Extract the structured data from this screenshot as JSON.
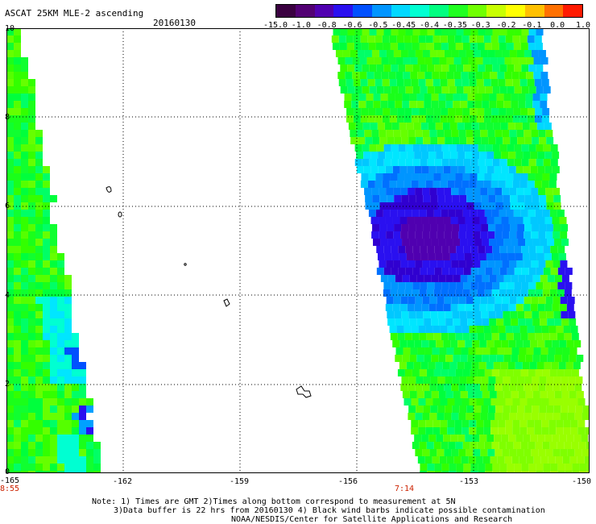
{
  "title": "ASCAT 25KM MLE-2 ascending",
  "date": "20160130",
  "colorbar": {
    "labels": [
      "-15.0",
      "-1.0",
      "-0.8",
      "-0.6",
      "-0.5",
      "-0.45",
      "-0.4",
      "-0.35",
      "-0.3",
      "-0.2",
      "-0.1",
      "0.0",
      "1.0"
    ],
    "colors": [
      "#3a0040",
      "#520073",
      "#5000b0",
      "#2a10f0",
      "#0050ff",
      "#0095ff",
      "#00d8ff",
      "#00ffd2",
      "#00ff80",
      "#20ff20",
      "#70ff00",
      "#c8ff00",
      "#ffff00",
      "#ffc000",
      "#ff7000",
      "#ff1a00"
    ]
  },
  "axes": {
    "y_ticks": [
      "10",
      "8",
      "6",
      "4",
      "2",
      "0"
    ],
    "x_ticks": [
      "-165",
      "-162",
      "-159",
      "-156",
      "-153",
      "-150"
    ],
    "time_labels": [
      "8:55",
      "7:14"
    ]
  },
  "notes": {
    "line1": "Note: 1) Times are GMT 2)Times along bottom correspond to measurement at 5N",
    "line2": "3)Data buffer is 22 hrs from 20160130 4) Black wind barbs indicate possible contamination",
    "line3": "NOAA/NESDIS/Center for Satellite Applications and Research"
  },
  "map_extent": {
    "lon": [
      -165,
      -150
    ],
    "lat": [
      0,
      10
    ]
  }
}
